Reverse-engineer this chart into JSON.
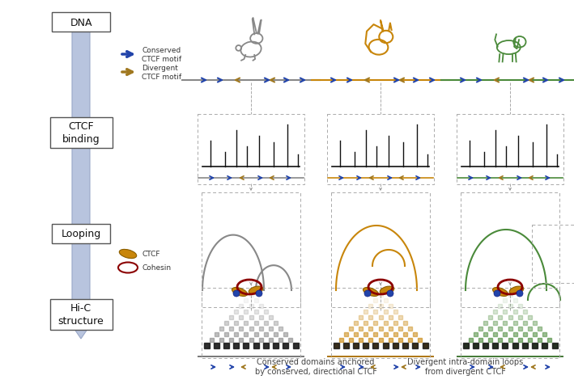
{
  "background_color": "#ffffff",
  "arrow_shaft_color": "#b8c4de",
  "arrow_edge_color": "#9aa8c8",
  "box_labels": [
    "DNA",
    "CTCF\nbinding",
    "Looping",
    "Hi-C\nstructure"
  ],
  "species_colors": [
    "#888888",
    "#c8860b",
    "#4a8a3a"
  ],
  "conserved_color": "#2244aa",
  "divergent_color": "#a07820",
  "ctcf_face": "#c8860b",
  "ctcf_edge": "#8b5e00",
  "cohesin_edge": "#8b0000",
  "dark_dot_color": "#222222",
  "caption1": "Conserved domains anchored\nby conserved, directional CTCF",
  "caption2": "Divergent intra-domain loops\nfrom divergent CTCF"
}
